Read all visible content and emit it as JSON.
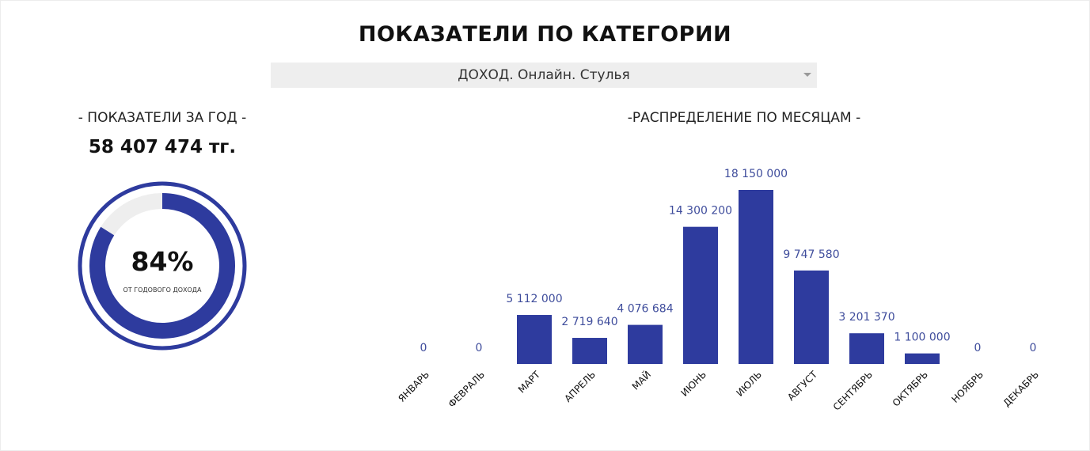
{
  "header": {
    "title": "ПОКАЗАТЕЛИ ПО КАТЕГОРИИ",
    "category_select": "ДОХОД. Онлайн. Стулья"
  },
  "year_panel": {
    "title": "- ПОКАЗАТЕЛИ ЗА ГОД -",
    "total": "58 407 474 тг.",
    "percent_label": "84%",
    "percent_value": 84,
    "caption": "ОТ ГОДОВОГО ДОХОДА"
  },
  "colors": {
    "accent": "#2e3b9e",
    "track": "#eeeeee",
    "label": "#3f4d9c"
  },
  "chart_data": {
    "type": "bar",
    "title": "-РАСПРЕДЕЛЕНИЕ ПО МЕСЯЦАМ -",
    "categories": [
      "ЯНВАРЬ",
      "ФЕВРАЛЬ",
      "МАРТ",
      "АПРЕЛЬ",
      "МАЙ",
      "ИЮНЬ",
      "ИЮЛЬ",
      "АВГУСТ",
      "СЕНТЯБРЬ",
      "ОКТЯБРЬ",
      "НОЯБРЬ",
      "ДЕКАБРЬ"
    ],
    "values": [
      0,
      0,
      5112000,
      2719640,
      4076684,
      14300200,
      18150000,
      9747580,
      3201370,
      1100000,
      0,
      0
    ],
    "value_labels": [
      "0",
      "0",
      "5 112 000",
      "2 719 640",
      "4 076 684",
      "14 300 200",
      "18 150 000",
      "9 747 580",
      "3 201 370",
      "1 100 000",
      "0",
      "0"
    ],
    "xlabel": "",
    "ylabel": "",
    "grid": false,
    "legend": "none"
  }
}
